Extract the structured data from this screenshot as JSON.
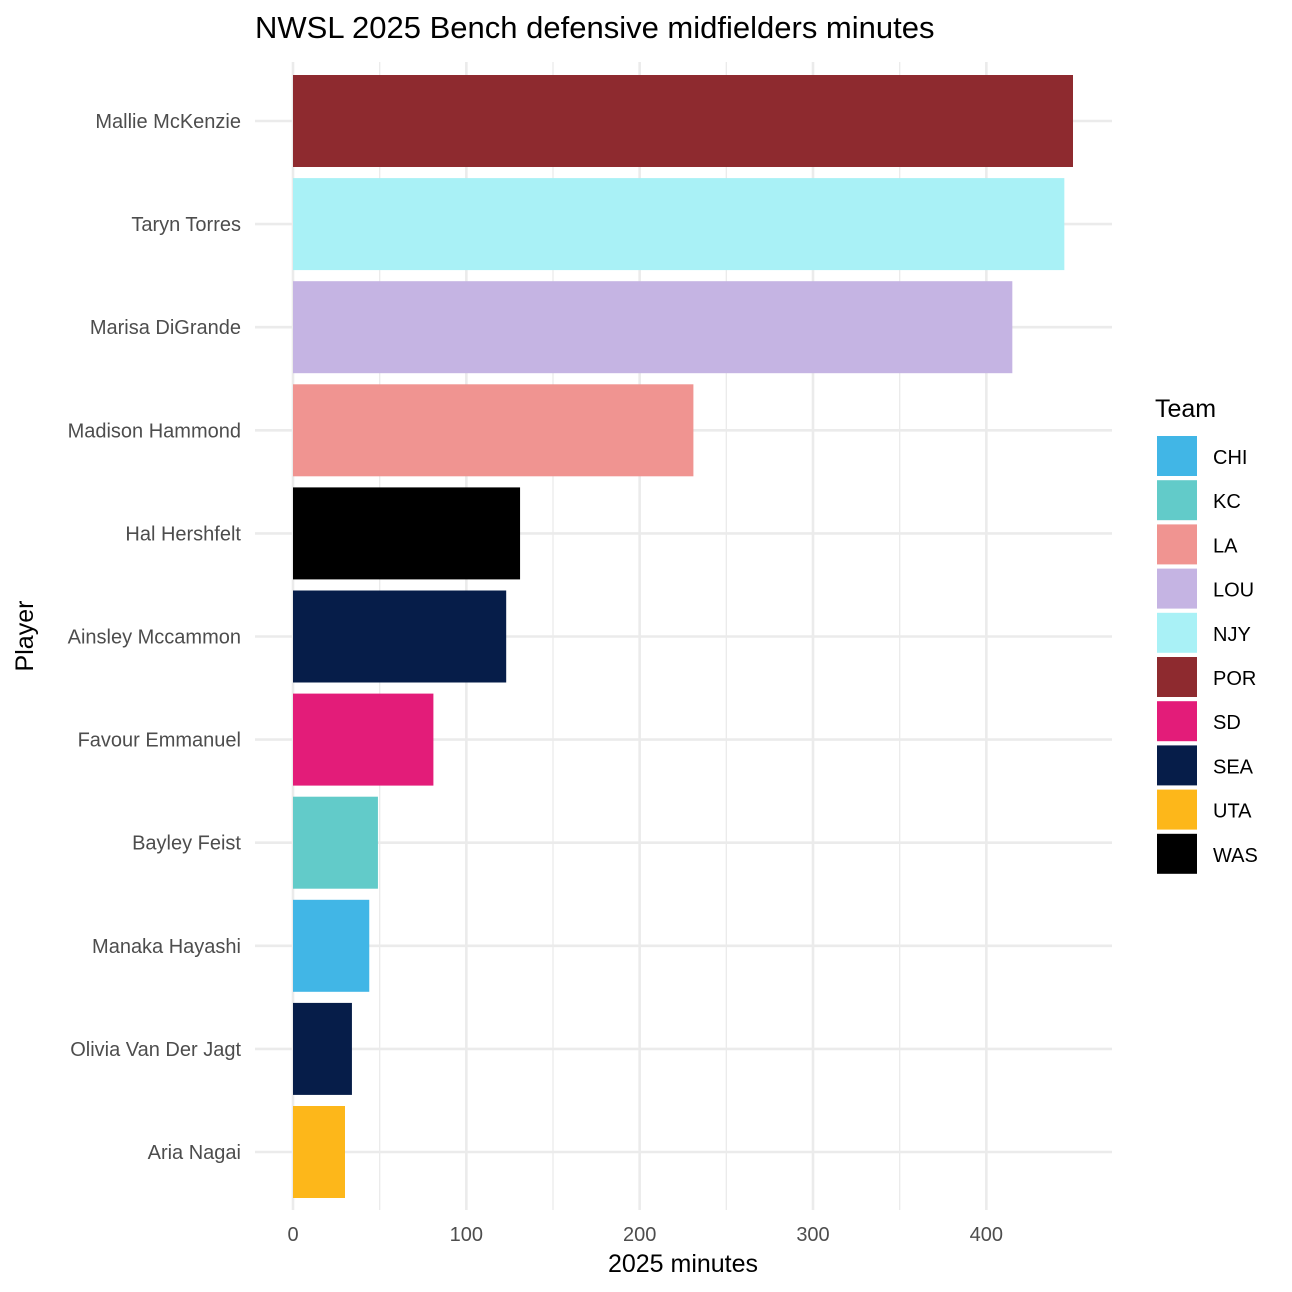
{
  "chart_data": {
    "type": "bar",
    "orientation": "horizontal",
    "title": "NWSL 2025 Bench defensive midfielders minutes",
    "xlabel": "2025 minutes",
    "ylabel": "Player",
    "xlim": [
      0,
      450
    ],
    "xticks": [
      0,
      100,
      200,
      300,
      400
    ],
    "grid": true,
    "legend": {
      "title": "Team",
      "position": "right"
    },
    "teams": [
      {
        "name": "CHI",
        "color": "#41B6E6"
      },
      {
        "name": "KC",
        "color": "#62CBC9"
      },
      {
        "name": "LA",
        "color": "#F09491"
      },
      {
        "name": "LOU",
        "color": "#C5B4E3"
      },
      {
        "name": "NJY",
        "color": "#A9F1F6"
      },
      {
        "name": "POR",
        "color": "#8E2A2F"
      },
      {
        "name": "SD",
        "color": "#E31C79"
      },
      {
        "name": "SEA",
        "color": "#061D49"
      },
      {
        "name": "UTA",
        "color": "#FDB71A"
      },
      {
        "name": "WAS",
        "color": "#000000"
      }
    ],
    "bars": [
      {
        "player": "Mallie McKenzie",
        "team": "POR",
        "value": 450
      },
      {
        "player": "Taryn Torres",
        "team": "NJY",
        "value": 445
      },
      {
        "player": "Marisa DiGrande",
        "team": "LOU",
        "value": 415
      },
      {
        "player": "Madison Hammond",
        "team": "LA",
        "value": 231
      },
      {
        "player": "Hal Hershfelt",
        "team": "WAS",
        "value": 131
      },
      {
        "player": "Ainsley Mccammon",
        "team": "SEA",
        "value": 123
      },
      {
        "player": "Favour Emmanuel",
        "team": "SD",
        "value": 81
      },
      {
        "player": "Bayley Feist",
        "team": "KC",
        "value": 49
      },
      {
        "player": "Manaka Hayashi",
        "team": "CHI",
        "value": 44
      },
      {
        "player": "Olivia Van Der Jagt",
        "team": "SEA",
        "value": 34
      },
      {
        "player": "Aria Nagai",
        "team": "UTA",
        "value": 30
      }
    ]
  }
}
